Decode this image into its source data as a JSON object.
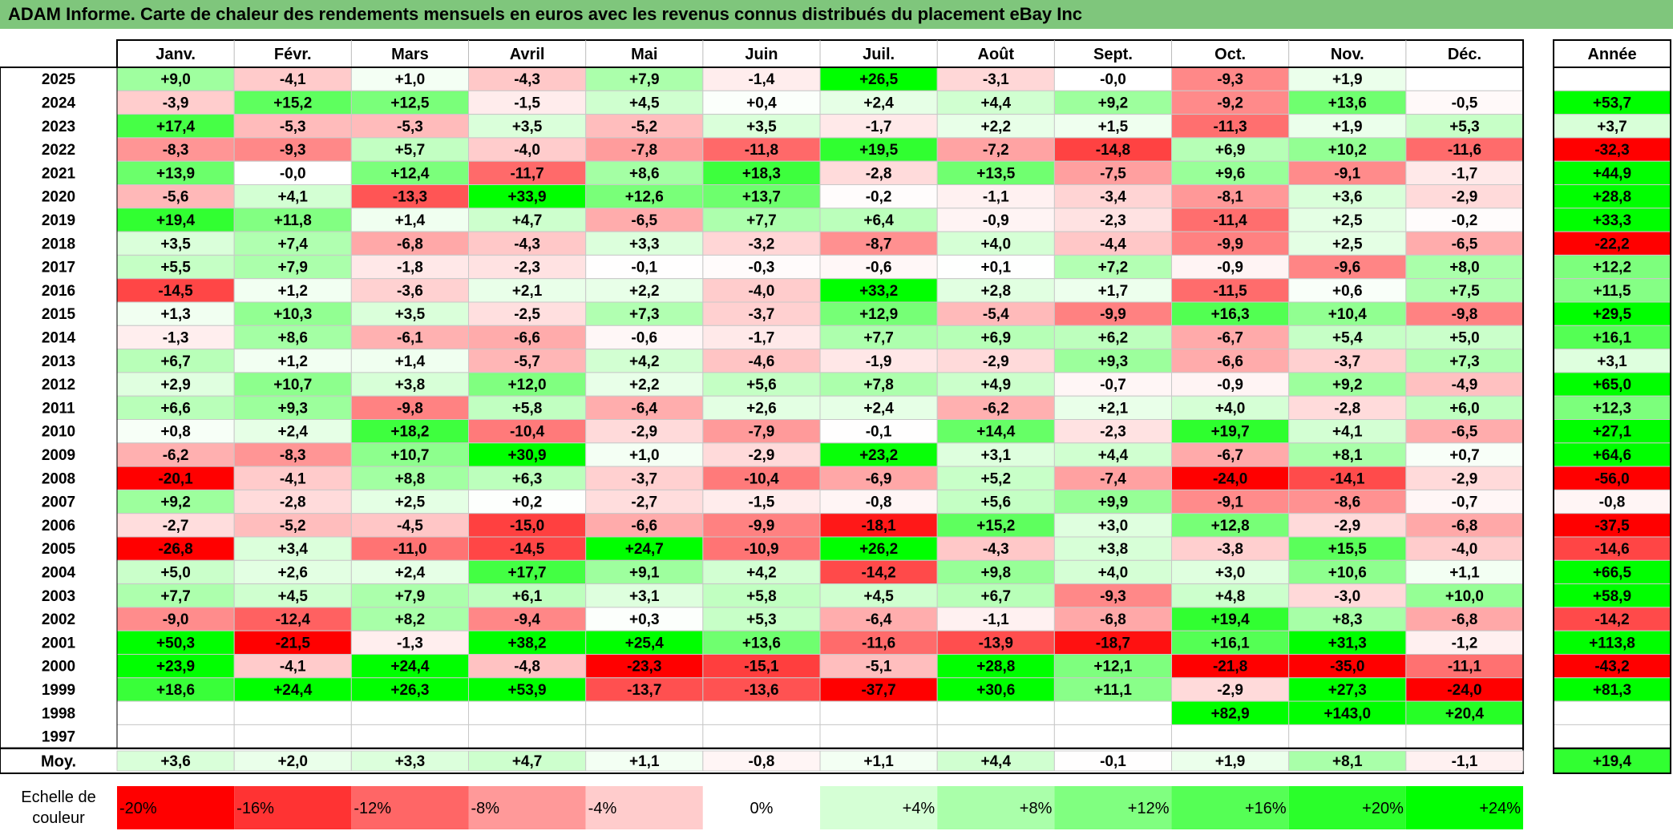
{
  "title": "ADAM Informe. Carte de chaleur des rendements mensuels en euros avec les revenus connus distribués du placement eBay Inc",
  "colors": {
    "title_bg": "#7fc67c",
    "max_red": "#ff0000",
    "max_green": "#00ff00",
    "neutral": "#ffffff"
  },
  "chart_data": {
    "type": "heatmap",
    "months": [
      "Janv.",
      "Févr.",
      "Mars",
      "Avril",
      "Mai",
      "Juin",
      "Juil.",
      "Août",
      "Sept.",
      "Oct.",
      "Nov.",
      "Déc."
    ],
    "year_header": "Année",
    "avg_label": "Moy.",
    "rows": [
      {
        "year": "2025",
        "values": [
          "+9,0",
          "-4,1",
          "+1,0",
          "-4,3",
          "+7,9",
          "-1,4",
          "+26,5",
          "-3,1",
          "-0,0",
          "-9,3",
          "+1,9",
          ""
        ],
        "annual": ""
      },
      {
        "year": "2024",
        "values": [
          "-3,9",
          "+15,2",
          "+12,5",
          "-1,5",
          "+4,5",
          "+0,4",
          "+2,4",
          "+4,4",
          "+9,2",
          "-9,2",
          "+13,6",
          "-0,5"
        ],
        "annual": "+53,7"
      },
      {
        "year": "2023",
        "values": [
          "+17,4",
          "-5,3",
          "-5,3",
          "+3,5",
          "-5,2",
          "+3,5",
          "-1,7",
          "+2,2",
          "+1,5",
          "-11,3",
          "+1,9",
          "+5,3"
        ],
        "annual": "+3,7"
      },
      {
        "year": "2022",
        "values": [
          "-8,3",
          "-9,3",
          "+5,7",
          "-4,0",
          "-7,8",
          "-11,8",
          "+19,5",
          "-7,2",
          "-14,8",
          "+6,9",
          "+10,2",
          "-11,6"
        ],
        "annual": "-32,3"
      },
      {
        "year": "2021",
        "values": [
          "+13,9",
          "-0,0",
          "+12,4",
          "-11,7",
          "+8,6",
          "+18,3",
          "-2,8",
          "+13,5",
          "-7,5",
          "+9,6",
          "-9,1",
          "-1,7"
        ],
        "annual": "+44,9"
      },
      {
        "year": "2020",
        "values": [
          "-5,6",
          "+4,1",
          "-13,3",
          "+33,9",
          "+12,6",
          "+13,7",
          "-0,2",
          "-1,1",
          "-3,4",
          "-8,1",
          "+3,6",
          "-2,9"
        ],
        "annual": "+28,8"
      },
      {
        "year": "2019",
        "values": [
          "+19,4",
          "+11,8",
          "+1,4",
          "+4,7",
          "-6,5",
          "+7,7",
          "+6,4",
          "-0,9",
          "-2,3",
          "-11,4",
          "+2,5",
          "-0,2"
        ],
        "annual": "+33,3"
      },
      {
        "year": "2018",
        "values": [
          "+3,5",
          "+7,4",
          "-6,8",
          "-4,3",
          "+3,3",
          "-3,2",
          "-8,7",
          "+4,0",
          "-4,4",
          "-9,9",
          "+2,5",
          "-6,5"
        ],
        "annual": "-22,2"
      },
      {
        "year": "2017",
        "values": [
          "+5,5",
          "+7,9",
          "-1,8",
          "-2,3",
          "-0,1",
          "-0,3",
          "-0,6",
          "+0,1",
          "+7,2",
          "-0,9",
          "-9,6",
          "+8,0"
        ],
        "annual": "+12,2"
      },
      {
        "year": "2016",
        "values": [
          "-14,5",
          "+1,2",
          "-3,6",
          "+2,1",
          "+2,2",
          "-4,0",
          "+33,2",
          "+2,8",
          "+1,7",
          "-11,5",
          "+0,6",
          "+7,5"
        ],
        "annual": "+11,5"
      },
      {
        "year": "2015",
        "values": [
          "+1,3",
          "+10,3",
          "+3,5",
          "-2,5",
          "+7,3",
          "-3,7",
          "+12,9",
          "-5,4",
          "-9,9",
          "+16,3",
          "+10,4",
          "-9,8"
        ],
        "annual": "+29,5"
      },
      {
        "year": "2014",
        "values": [
          "-1,3",
          "+8,6",
          "-6,1",
          "-6,6",
          "-0,6",
          "-1,7",
          "+7,7",
          "+6,9",
          "+6,2",
          "-6,7",
          "+5,4",
          "+5,0"
        ],
        "annual": "+16,1"
      },
      {
        "year": "2013",
        "values": [
          "+6,7",
          "+1,2",
          "+1,4",
          "-5,7",
          "+4,2",
          "-4,6",
          "-1,9",
          "-2,9",
          "+9,3",
          "-6,6",
          "-3,7",
          "+7,3"
        ],
        "annual": "+3,1"
      },
      {
        "year": "2012",
        "values": [
          "+2,9",
          "+10,7",
          "+3,8",
          "+12,0",
          "+2,2",
          "+5,6",
          "+7,8",
          "+4,9",
          "-0,7",
          "-0,9",
          "+9,2",
          "-4,9"
        ],
        "annual": "+65,0"
      },
      {
        "year": "2011",
        "values": [
          "+6,6",
          "+9,3",
          "-9,8",
          "+5,8",
          "-6,4",
          "+2,6",
          "+2,4",
          "-6,2",
          "+2,1",
          "+4,0",
          "-2,8",
          "+6,0"
        ],
        "annual": "+12,3"
      },
      {
        "year": "2010",
        "values": [
          "+0,8",
          "+2,4",
          "+18,2",
          "-10,4",
          "-2,9",
          "-7,9",
          "-0,1",
          "+14,4",
          "-2,3",
          "+19,7",
          "+4,1",
          "-6,5"
        ],
        "annual": "+27,1"
      },
      {
        "year": "2009",
        "values": [
          "-6,2",
          "-8,3",
          "+10,7",
          "+30,9",
          "+1,0",
          "-2,9",
          "+23,2",
          "+3,1",
          "+4,4",
          "-6,7",
          "+8,1",
          "+0,7"
        ],
        "annual": "+64,6"
      },
      {
        "year": "2008",
        "values": [
          "-20,1",
          "-4,1",
          "+8,8",
          "+6,3",
          "-3,7",
          "-10,4",
          "-6,9",
          "+5,2",
          "-7,4",
          "-24,0",
          "-14,1",
          "-2,9"
        ],
        "annual": "-56,0"
      },
      {
        "year": "2007",
        "values": [
          "+9,2",
          "-2,8",
          "+2,5",
          "+0,2",
          "-2,7",
          "-1,5",
          "-0,8",
          "+5,6",
          "+9,9",
          "-9,1",
          "-8,6",
          "-0,7"
        ],
        "annual": "-0,8"
      },
      {
        "year": "2006",
        "values": [
          "-2,7",
          "-5,2",
          "-4,5",
          "-15,0",
          "-6,6",
          "-9,9",
          "-18,1",
          "+15,2",
          "+3,0",
          "+12,8",
          "-2,9",
          "-6,8"
        ],
        "annual": "-37,5"
      },
      {
        "year": "2005",
        "values": [
          "-26,8",
          "+3,4",
          "-11,0",
          "-14,5",
          "+24,7",
          "-10,9",
          "+26,2",
          "-4,3",
          "+3,8",
          "-3,8",
          "+15,5",
          "-4,0"
        ],
        "annual": "-14,6"
      },
      {
        "year": "2004",
        "values": [
          "+5,0",
          "+2,6",
          "+2,4",
          "+17,7",
          "+9,1",
          "+4,2",
          "-14,2",
          "+9,8",
          "+4,0",
          "+3,0",
          "+10,6",
          "+1,1"
        ],
        "annual": "+66,5"
      },
      {
        "year": "2003",
        "values": [
          "+7,7",
          "+4,5",
          "+7,9",
          "+6,1",
          "+3,1",
          "+5,8",
          "+4,5",
          "+6,7",
          "-9,3",
          "+4,8",
          "-3,0",
          "+10,0"
        ],
        "annual": "+58,9"
      },
      {
        "year": "2002",
        "values": [
          "-9,0",
          "-12,4",
          "+8,2",
          "-9,4",
          "+0,3",
          "+5,3",
          "-6,4",
          "-1,1",
          "-6,8",
          "+19,4",
          "+8,3",
          "-6,8"
        ],
        "annual": "-14,2"
      },
      {
        "year": "2001",
        "values": [
          "+50,3",
          "-21,5",
          "-1,3",
          "+38,2",
          "+25,4",
          "+13,6",
          "-11,6",
          "-13,9",
          "-18,7",
          "+16,1",
          "+31,3",
          "-1,2"
        ],
        "annual": "+113,8"
      },
      {
        "year": "2000",
        "values": [
          "+23,9",
          "-4,1",
          "+24,4",
          "-4,8",
          "-23,3",
          "-15,1",
          "-5,1",
          "+28,8",
          "+12,1",
          "-21,8",
          "-35,0",
          "-11,1"
        ],
        "annual": "-43,2"
      },
      {
        "year": "1999",
        "values": [
          "+18,6",
          "+24,4",
          "+26,3",
          "+53,9",
          "-13,7",
          "-13,6",
          "-37,7",
          "+30,6",
          "+11,1",
          "-2,9",
          "+27,3",
          "-24,0"
        ],
        "annual": "+81,3"
      },
      {
        "year": "1998",
        "values": [
          "",
          "",
          "",
          "",
          "",
          "",
          "",
          "",
          "",
          "+82,9",
          "+143,0",
          "+20,4"
        ],
        "annual": ""
      },
      {
        "year": "1997",
        "values": [
          "",
          "",
          "",
          "",
          "",
          "",
          "",
          "",
          "",
          "",
          "",
          ""
        ],
        "annual": ""
      }
    ],
    "averages": {
      "values": [
        "+3,6",
        "+2,0",
        "+3,3",
        "+4,7",
        "+1,1",
        "-0,8",
        "+1,1",
        "+4,4",
        "-0,1",
        "+1,9",
        "+8,1",
        "-1,1"
      ],
      "annual": "+19,4"
    },
    "scale": {
      "label_line1": "Echelle de",
      "label_line2": "couleur",
      "steps": [
        {
          "label": "-20%",
          "value": -20
        },
        {
          "label": "-16%",
          "value": -16
        },
        {
          "label": "-12%",
          "value": -12
        },
        {
          "label": "-8%",
          "value": -8
        },
        {
          "label": "-4%",
          "value": -4
        },
        {
          "label": "0%",
          "value": 0
        },
        {
          "label": "+4%",
          "value": 4
        },
        {
          "label": "+8%",
          "value": 8
        },
        {
          "label": "+12%",
          "value": 12
        },
        {
          "label": "+16%",
          "value": 16
        },
        {
          "label": "+20%",
          "value": 20
        },
        {
          "label": "+24%",
          "value": 24
        }
      ]
    },
    "color_range": {
      "min": -20,
      "max": 24
    }
  }
}
